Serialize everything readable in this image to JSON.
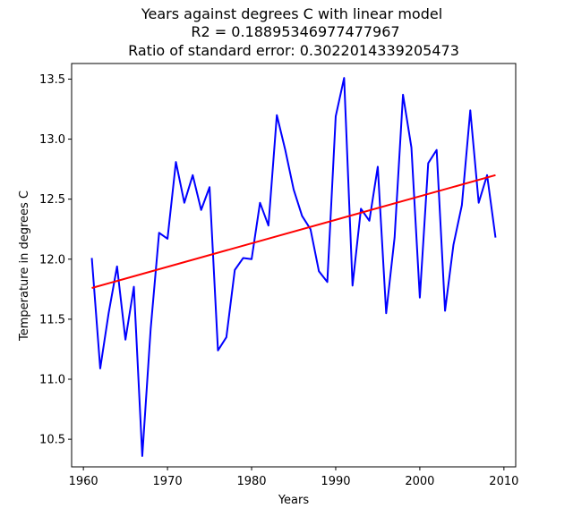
{
  "chart_data": {
    "type": "line",
    "title": [
      "Years against degrees C with linear model",
      "R2 = 0.18895346977477967",
      "Ratio of standard error: 0.3022014339205473"
    ],
    "xlabel": "Years",
    "ylabel": "Temperature in degrees C",
    "xlim": [
      1958.6,
      2011.4
    ],
    "ylim": [
      10.27,
      13.63
    ],
    "xticks": [
      1960,
      1970,
      1980,
      1990,
      2000,
      2010
    ],
    "yticks": [
      10.5,
      11.0,
      11.5,
      12.0,
      12.5,
      13.0,
      13.5
    ],
    "ytick_labels": [
      "10.5",
      "11.0",
      "11.5",
      "12.0",
      "12.5",
      "13.0",
      "13.5"
    ],
    "grid": false,
    "series": [
      {
        "color": "#0000ff",
        "x": [
          1961,
          1962,
          1963,
          1964,
          1965,
          1966,
          1967,
          1968,
          1969,
          1970,
          1971,
          1972,
          1973,
          1974,
          1975,
          1976,
          1977,
          1978,
          1979,
          1980,
          1981,
          1982,
          1983,
          1984,
          1985,
          1986,
          1987,
          1988,
          1989,
          1990,
          1991,
          1992,
          1993,
          1994,
          1995,
          1996,
          1997,
          1998,
          1999,
          2000,
          2001,
          2002,
          2003,
          2004,
          2005,
          2006,
          2007,
          2008,
          2009
        ],
        "y": [
          12.01,
          11.09,
          11.55,
          11.94,
          11.33,
          11.77,
          10.36,
          11.42,
          12.22,
          12.17,
          12.81,
          12.47,
          12.7,
          12.41,
          12.6,
          11.24,
          11.35,
          11.91,
          12.01,
          12.0,
          12.47,
          12.28,
          13.2,
          12.91,
          12.58,
          12.36,
          12.25,
          11.9,
          11.81,
          13.19,
          13.51,
          11.78,
          12.42,
          12.32,
          12.77,
          11.55,
          12.18,
          13.37,
          12.93,
          11.68,
          12.8,
          12.91,
          11.57,
          12.12,
          12.45,
          13.24,
          12.47,
          12.7,
          12.18
        ]
      },
      {
        "color": "#ff0000",
        "x": [
          1961,
          2009
        ],
        "y": [
          11.76,
          12.7
        ]
      }
    ]
  }
}
